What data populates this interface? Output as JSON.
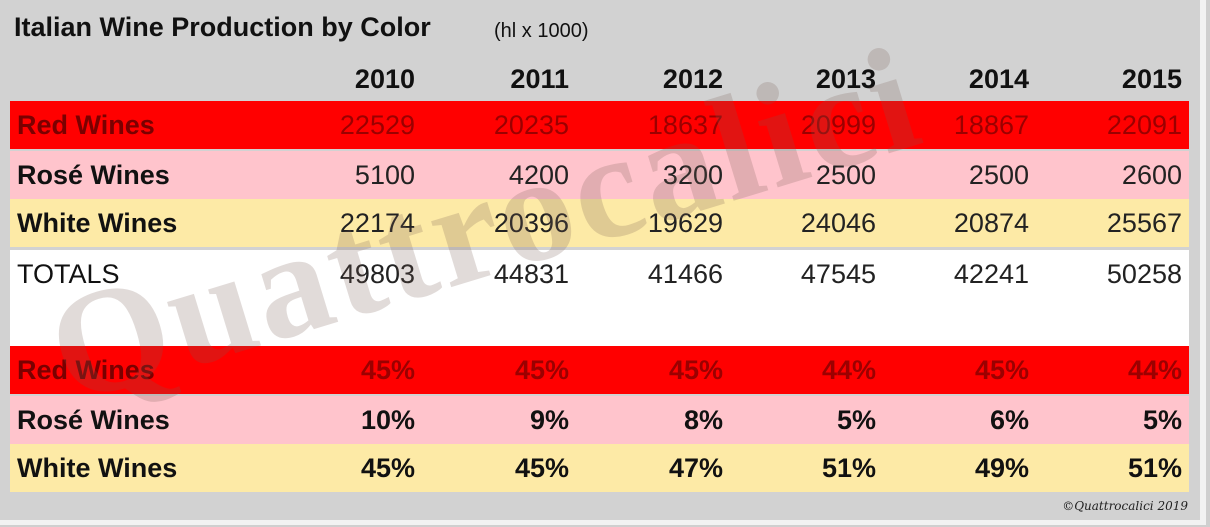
{
  "title": "Italian Wine Production by Color",
  "unit": "(hl x 1000)",
  "watermark": "Quattrocalici",
  "credit": "©Quattrocalici 2019",
  "chart_data": {
    "type": "table",
    "title": "Italian Wine Production by Color",
    "subtitle": "(hl x 1000)",
    "columns": [
      "2010",
      "2011",
      "2012",
      "2013",
      "2014",
      "2015"
    ],
    "volume_rows": [
      {
        "label": "Red Wines",
        "values": [
          "22529",
          "20235",
          "18637",
          "20999",
          "18867",
          "22091"
        ]
      },
      {
        "label": "Rosé Wines",
        "values": [
          "5100",
          "4200",
          "3200",
          "2500",
          "2500",
          "2600"
        ]
      },
      {
        "label": "White Wines",
        "values": [
          "22174",
          "20396",
          "19629",
          "24046",
          "20874",
          "25567"
        ]
      },
      {
        "label": "TOTALS",
        "values": [
          "49803",
          "44831",
          "41466",
          "47545",
          "42241",
          "50258"
        ]
      }
    ],
    "share_rows": [
      {
        "label": "Red Wines",
        "values": [
          "45%",
          "45%",
          "45%",
          "44%",
          "45%",
          "44%"
        ]
      },
      {
        "label": "Rosé Wines",
        "values": [
          "10%",
          "9%",
          "8%",
          "5%",
          "6%",
          "5%"
        ]
      },
      {
        "label": "White Wines",
        "values": [
          "45%",
          "45%",
          "47%",
          "51%",
          "49%",
          "51%"
        ]
      }
    ]
  },
  "colors": {
    "red_band": "#ff0000",
    "rose_band": "#ffc4cc",
    "white_band": "#fdeaa6",
    "totals_band": "#ffffff",
    "frame": "#d2d2d2"
  }
}
